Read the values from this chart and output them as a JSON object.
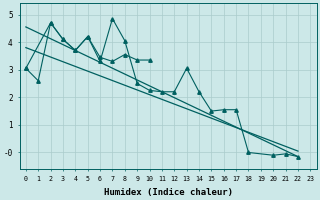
{
  "xlabel": "Humidex (Indice chaleur)",
  "bg_color": "#cce8e8",
  "line_color": "#006060",
  "grid_color": "#aacccc",
  "jagged_x": [
    0,
    1,
    2,
    3,
    4,
    5,
    6,
    7,
    8,
    9,
    10,
    11,
    12,
    13,
    14,
    15,
    16,
    17,
    18,
    20,
    21,
    22
  ],
  "jagged_y": [
    3.05,
    2.6,
    4.7,
    4.1,
    3.7,
    4.2,
    3.3,
    4.85,
    4.05,
    2.5,
    2.25,
    2.2,
    2.2,
    3.05,
    2.2,
    1.5,
    1.55,
    1.55,
    0.0,
    -0.1,
    -0.05,
    -0.15
  ],
  "smooth_x": [
    0,
    2,
    3,
    4,
    5,
    6,
    7,
    8,
    9,
    10
  ],
  "smooth_y": [
    3.05,
    4.7,
    4.1,
    3.7,
    4.2,
    3.45,
    3.3,
    3.55,
    3.35,
    3.35
  ],
  "trend1_x": [
    0,
    22
  ],
  "trend1_y": [
    4.55,
    -0.15
  ],
  "trend2_x": [
    0,
    22
  ],
  "trend2_y": [
    3.8,
    0.05
  ],
  "ylim": [
    -0.6,
    5.4
  ],
  "xlim": [
    -0.5,
    23.5
  ],
  "yticks": [
    0,
    1,
    2,
    3,
    4,
    5
  ],
  "ytick_labels": [
    "-0",
    "1",
    "2",
    "3",
    "4",
    "5"
  ],
  "xticks": [
    0,
    1,
    2,
    3,
    4,
    5,
    6,
    7,
    8,
    9,
    10,
    11,
    12,
    13,
    14,
    15,
    16,
    17,
    18,
    19,
    20,
    21,
    22,
    23
  ]
}
